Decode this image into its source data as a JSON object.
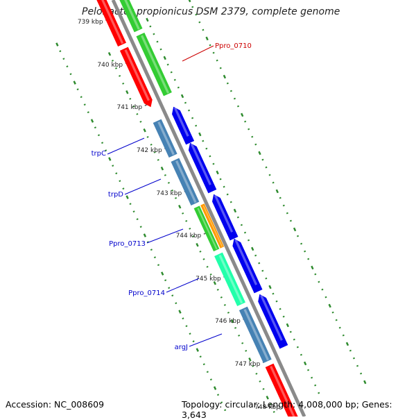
{
  "title": "Pelobacter propionicus DSM 2379, complete genome",
  "footer": {
    "accession": "Accession: NC_008609",
    "summary": "Topology: circular; Length: 4,008,000 bp; Genes: 3,643"
  },
  "ruler": {
    "ticks": [
      {
        "label": "739 kbp"
      },
      {
        "label": "740 kbp"
      },
      {
        "label": "741 kbp"
      },
      {
        "label": "742 kbp"
      },
      {
        "label": "743 kbp"
      },
      {
        "label": "744 kbp"
      },
      {
        "label": "745 kbp"
      },
      {
        "label": "746 kbp"
      },
      {
        "label": "747 kbp"
      },
      {
        "label": "748 kbp"
      }
    ]
  },
  "gene_labels": {
    "ppro_0710": "Ppro_0710",
    "trpc": "trpC",
    "trpd": "trpD",
    "ppro_0713": "Ppro_0713",
    "ppro_0714": "Ppro_0714",
    "argj": "argJ"
  },
  "colors": {
    "backbone": "#8a8a8a",
    "red": "#ff0000",
    "green": "#33cc33",
    "blue": "#0000ee",
    "steelblue": "#4682b4",
    "orange": "#ff9900",
    "aqua": "#22ffaa",
    "dots": "#2e8b2e",
    "label_blue": "#0000cc",
    "label_red": "#cc0000"
  }
}
